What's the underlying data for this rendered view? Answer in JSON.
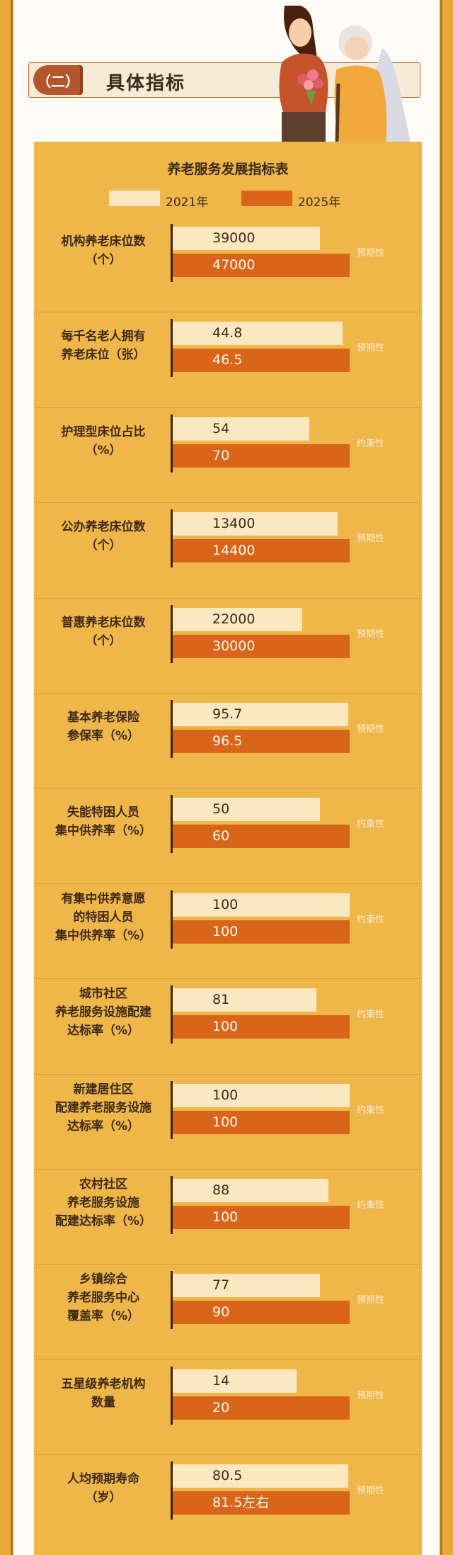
{
  "section": {
    "badge": "（二）",
    "title": "具体指标"
  },
  "colors": {
    "c2021": "#fbe7c0",
    "c2025": "#d9651a",
    "panel": "#efb64a",
    "accent": "#b4562b"
  },
  "chart_data": {
    "type": "bar",
    "title": "养老服务发展指标表",
    "legend": [
      "2021年",
      "2025年"
    ],
    "categories": [
      "机构养老床位数\n（个）",
      "每千名老人拥有\n养老床位（张）",
      "护理型床位占比\n（%）",
      "公办养老床位数\n（个）",
      "普惠养老床位数\n（个）",
      "基本养老保险\n参保率（%）",
      "失能特困人员\n集中供养率（%）",
      "有集中供养意愿\n的特困人员\n集中供养率（%）",
      "城市社区\n养老服务设施配建\n达标率（%）",
      "新建居住区\n配建养老服务设施\n达标率（%）",
      "农村社区\n养老服务设施\n配建达标率（%）",
      "乡镇综合\n养老服务中心\n覆盖率（%）",
      "五星级养老机构\n数量",
      "人均预期寿命\n（岁）"
    ],
    "series": [
      {
        "name": "2021年",
        "labels": [
          "39000",
          "44.8",
          "54",
          "13400",
          "22000",
          "95.7",
          "50",
          "100",
          "81",
          "100",
          "88",
          "77",
          "14",
          "80.5"
        ]
      },
      {
        "name": "2025年",
        "labels": [
          "47000",
          "46.5",
          "70",
          "14400",
          "30000",
          "96.5",
          "60",
          "100",
          "100",
          "100",
          "100",
          "90",
          "20",
          "81.5左右"
        ]
      }
    ],
    "relative_bar_length": [
      [
        0.83,
        1
      ],
      [
        0.96,
        1
      ],
      [
        0.77,
        1
      ],
      [
        0.93,
        1
      ],
      [
        0.73,
        1
      ],
      [
        0.99,
        1
      ],
      [
        0.83,
        1
      ],
      [
        1,
        1
      ],
      [
        0.81,
        1
      ],
      [
        1,
        1
      ],
      [
        0.88,
        1
      ],
      [
        0.83,
        1
      ],
      [
        0.7,
        1
      ],
      [
        0.99,
        1
      ]
    ],
    "tags": [
      "预期性",
      "预期性",
      "约束性",
      "预期性",
      "预期性",
      "预期性",
      "约束性",
      "约束性",
      "约束性",
      "约束性",
      "约束性",
      "预期性",
      "预期性",
      "预期性"
    ]
  }
}
